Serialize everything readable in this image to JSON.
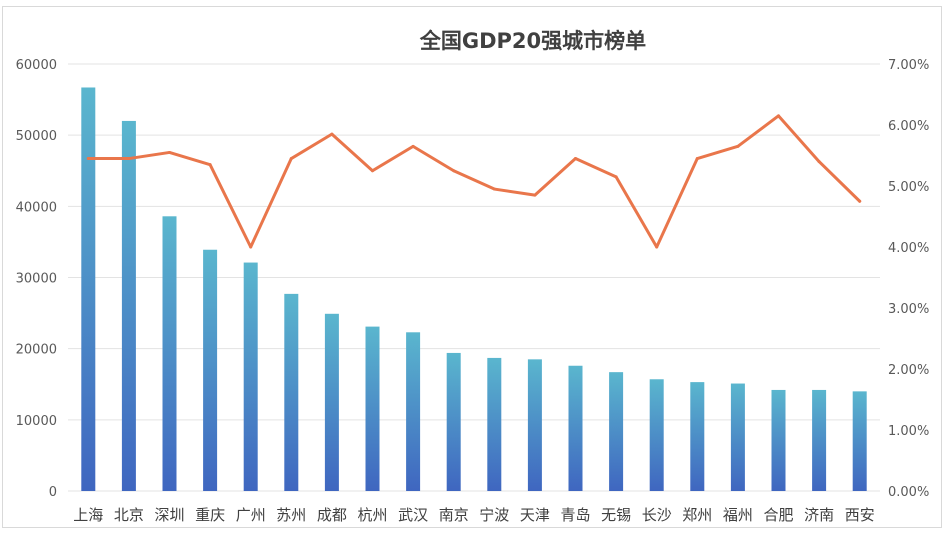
{
  "chart_data": {
    "type": "bar",
    "title": "全国GDP20强城市榜单",
    "categories": [
      "上海",
      "北京",
      "深圳",
      "重庆",
      "广州",
      "苏州",
      "成都",
      "杭州",
      "武汉",
      "南京",
      "宁波",
      "天津",
      "青岛",
      "无锡",
      "长沙",
      "郑州",
      "福州",
      "合肥",
      "济南",
      "西安"
    ],
    "series": [
      {
        "type": "bar",
        "axis": "left",
        "values": [
          56700,
          52000,
          38600,
          33900,
          32100,
          27700,
          24900,
          23100,
          22300,
          19400,
          18700,
          18500,
          17600,
          16700,
          15700,
          15300,
          15100,
          14200,
          14200,
          14000
        ],
        "color_top": "#5ab6ce",
        "color_bottom": "#3f66c0"
      },
      {
        "type": "line",
        "axis": "right",
        "values": [
          0.0545,
          0.0545,
          0.0555,
          0.0535,
          0.04,
          0.0545,
          0.0585,
          0.0525,
          0.0565,
          0.0525,
          0.0495,
          0.0485,
          0.0545,
          0.0515,
          0.04,
          0.0545,
          0.0565,
          0.0615,
          0.054,
          0.0475
        ],
        "color": "#e9764b"
      }
    ],
    "y_left": {
      "min": 0,
      "max": 60000,
      "ticks": [
        "0",
        "10000",
        "20000",
        "30000",
        "40000",
        "50000",
        "60000"
      ]
    },
    "y_right": {
      "min": 0,
      "max": 0.07,
      "ticks": [
        "0.00%",
        "1.00%",
        "2.00%",
        "3.00%",
        "4.00%",
        "5.00%",
        "6.00%",
        "7.00%"
      ]
    },
    "grid": true,
    "legend": "none"
  }
}
